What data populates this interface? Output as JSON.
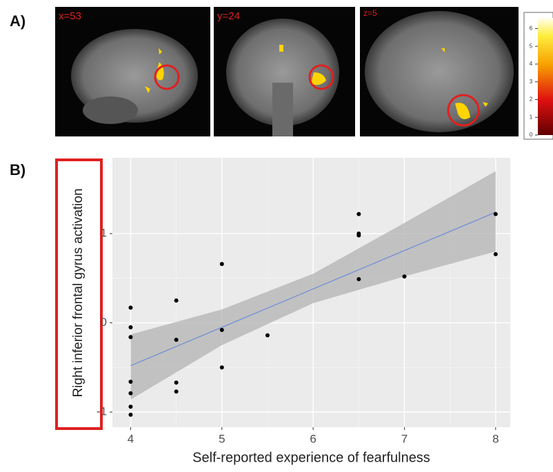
{
  "panel_a": {
    "label": "A)",
    "images": [
      "x=53",
      "y=24",
      "z=5"
    ],
    "colorbar": {
      "ticks": [
        0,
        1,
        2,
        3,
        4,
        5,
        6
      ],
      "lim": [
        0,
        6.6
      ]
    }
  },
  "chart_data": {
    "type": "scatter",
    "panel_label": "B)",
    "x_label": "Self-reported experience of fearfulness",
    "y_label": "Right inferior frontal gyrus activation",
    "x": [
      4,
      4,
      4,
      4,
      4,
      4,
      4,
      4.5,
      4.5,
      4.5,
      4.5,
      5,
      5,
      5,
      5.5,
      6.5,
      6.5,
      6.5,
      6.5,
      7,
      8,
      8
    ],
    "values": [
      0.17,
      -0.05,
      -0.16,
      -0.66,
      -0.79,
      -0.94,
      -1.03,
      0.25,
      -0.19,
      -0.67,
      -0.77,
      0.66,
      -0.08,
      -0.5,
      -0.14,
      1.22,
      1.0,
      0.98,
      0.49,
      0.52,
      1.22,
      0.77
    ],
    "color": "#000000",
    "fit": {
      "x": [
        4,
        5,
        6,
        7,
        8
      ],
      "values": [
        -0.48,
        -0.05,
        0.38,
        0.81,
        1.24
      ],
      "lower": [
        -0.86,
        -0.25,
        0.22,
        0.52,
        0.8
      ],
      "upper": [
        -0.13,
        0.15,
        0.55,
        1.12,
        1.7
      ],
      "color": "#6f8fd8",
      "band_color": "#b3b3b3"
    },
    "xlim": [
      3.8,
      8.16
    ],
    "ylim": [
      -1.17,
      1.85
    ],
    "xticks": [
      4,
      5,
      6,
      7,
      8
    ],
    "yticks": [
      -1,
      0,
      1
    ],
    "grid": true
  }
}
